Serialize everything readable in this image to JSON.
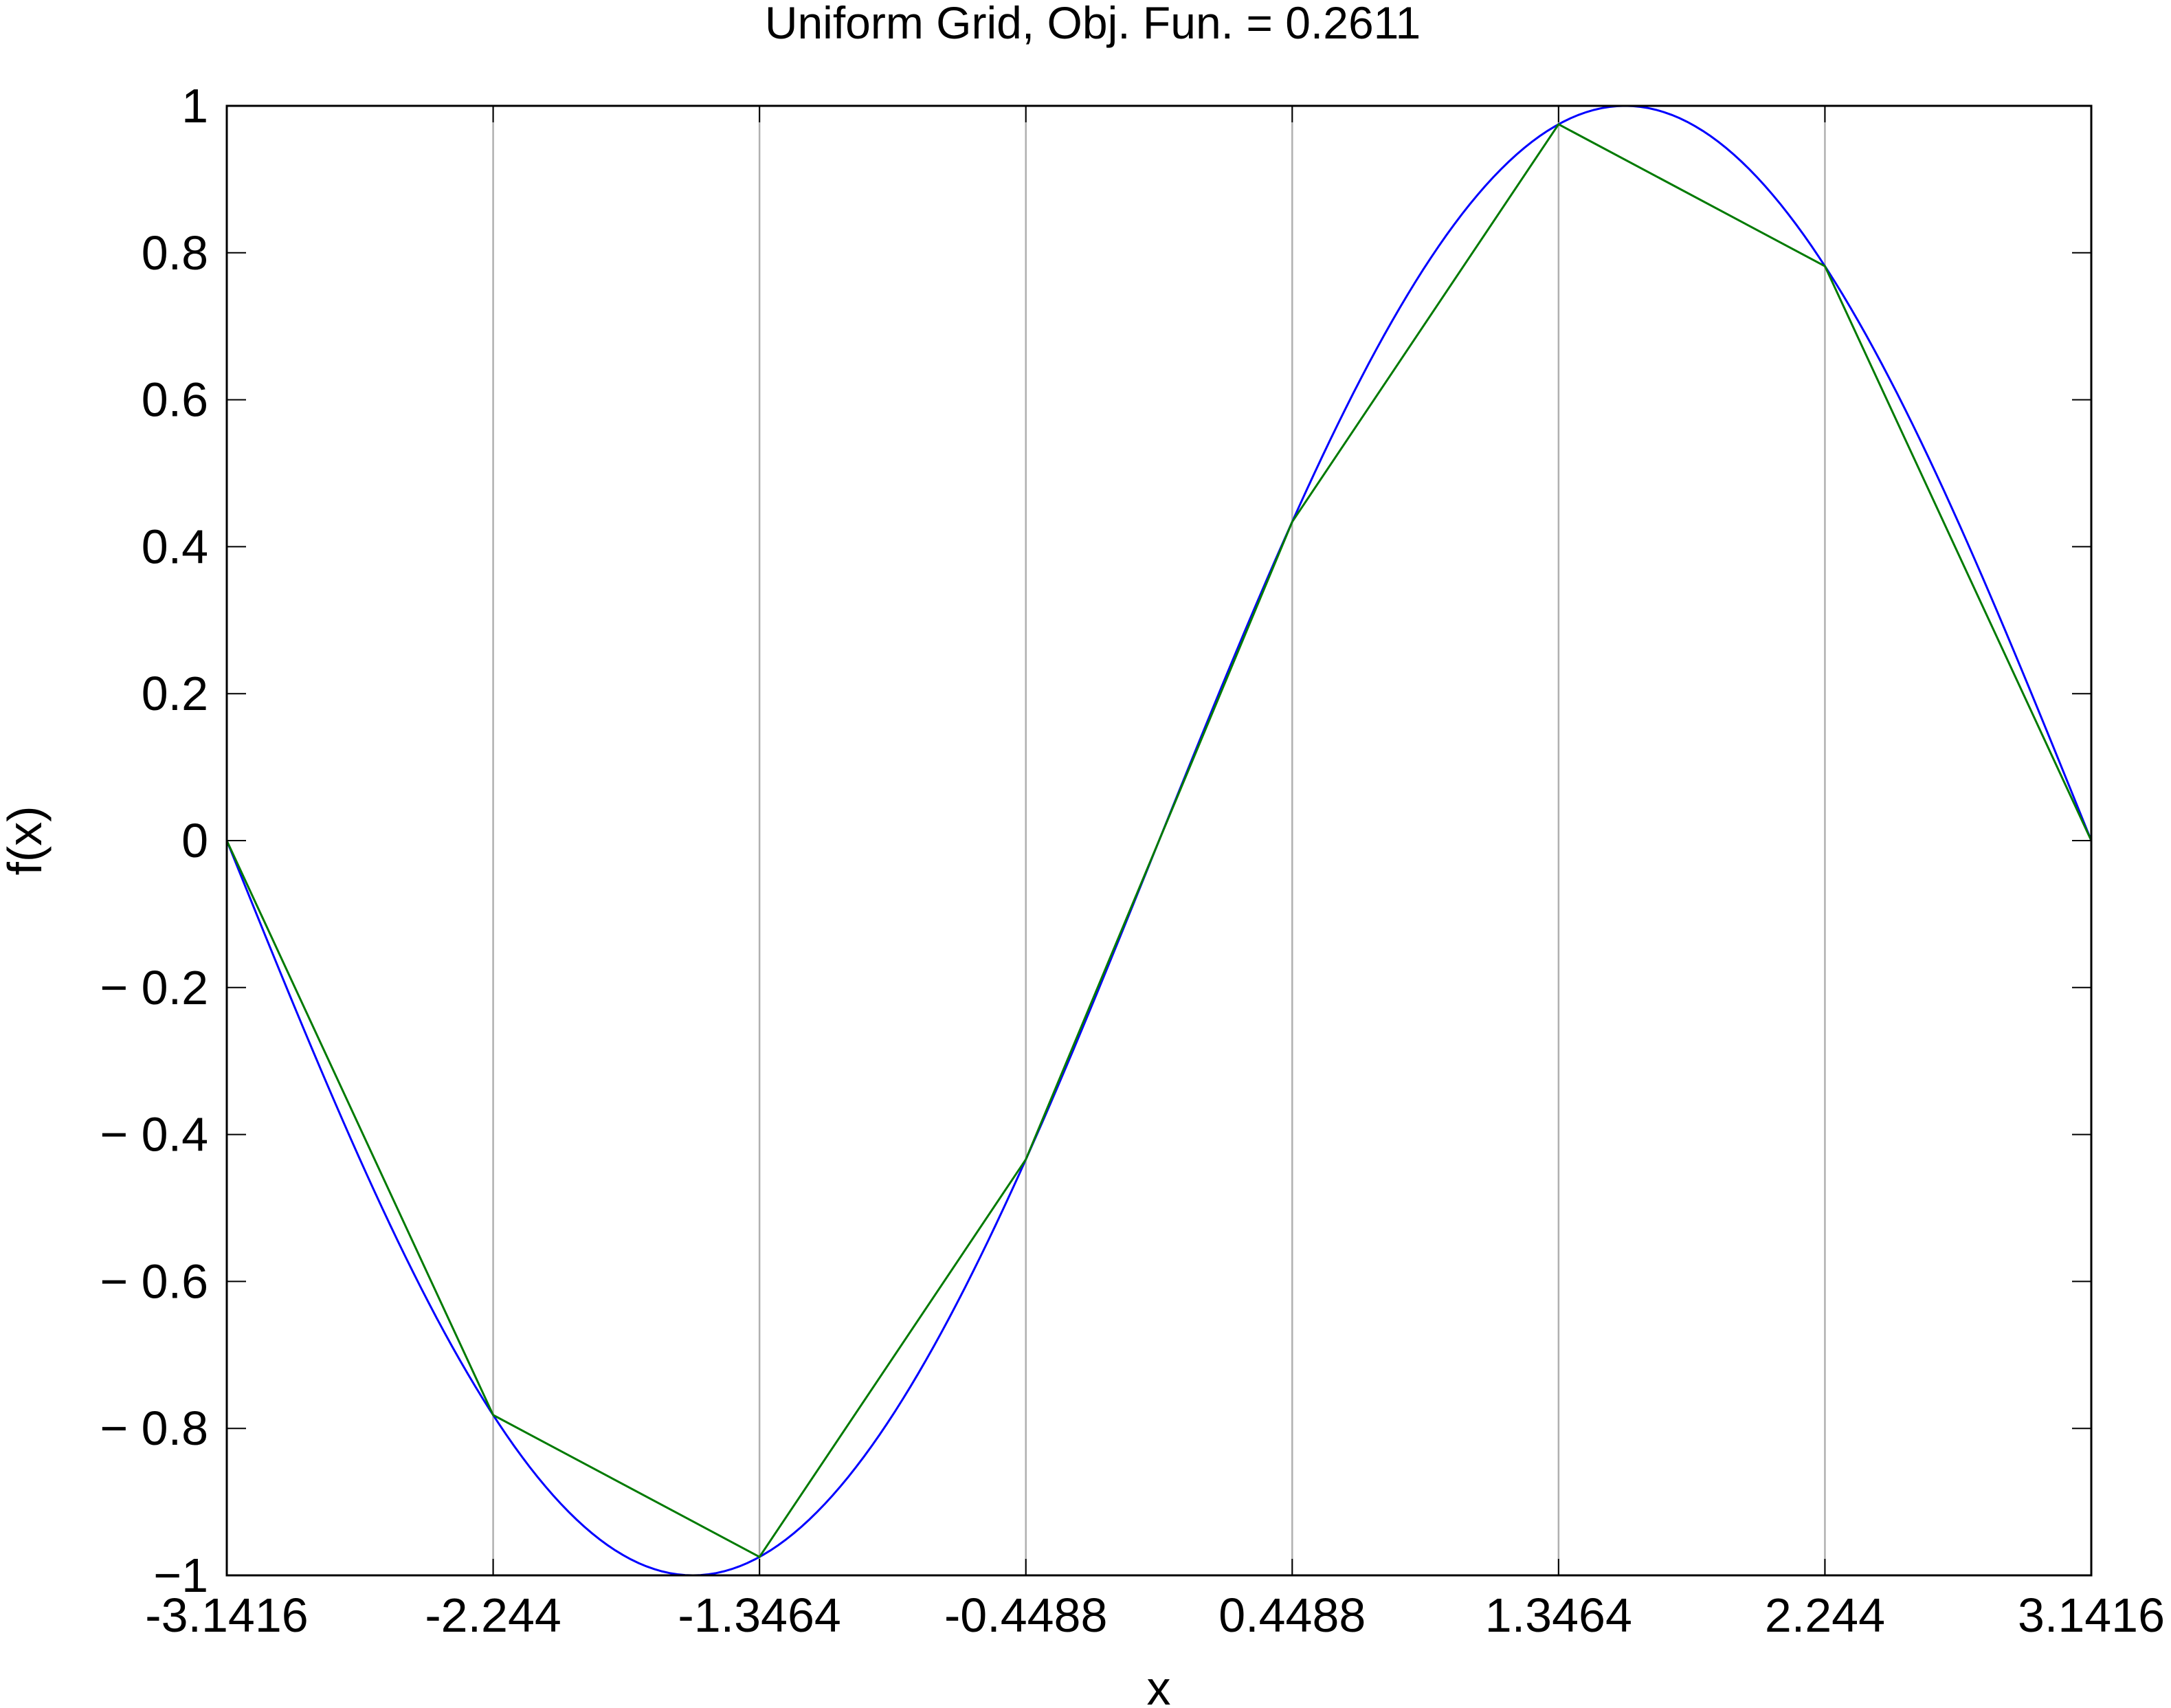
{
  "chart_data": {
    "type": "line",
    "title": "Uniform Grid, Obj.  Fun. =  0.2611",
    "xlabel": "x",
    "ylabel": "f(x)",
    "xlim": [
      -3.1416,
      3.1416
    ],
    "ylim": [
      -1,
      1
    ],
    "grid": {
      "x": true,
      "y": false
    },
    "x_ticks": [
      -3.1416,
      -2.244,
      -1.3464,
      -0.4488,
      0.4488,
      1.3464,
      2.244,
      3.1416
    ],
    "x_tick_labels": [
      "-3.1416",
      "-2.244",
      "-1.3464",
      "-0.4488",
      "0.4488",
      "1.3464",
      "2.244",
      "3.1416"
    ],
    "y_ticks": [
      1,
      0.8,
      0.6,
      0.4,
      0.2,
      0,
      -0.2,
      -0.4,
      -0.6,
      -0.8,
      -1
    ],
    "y_tick_labels": [
      "1",
      "0.8",
      "0.6",
      "0.4",
      "0.2",
      "0",
      "− 0.2",
      "− 0.4",
      "− 0.6",
      "− 0.8",
      "−1"
    ],
    "series": [
      {
        "function": "sin(x)",
        "color": "#0000ff",
        "samples": 240
      },
      {
        "color": "#007a00",
        "x": [
          -3.1416,
          -2.244,
          -1.3464,
          -0.4488,
          0.4488,
          1.3464,
          2.244,
          3.1416
        ],
        "y": [
          0,
          -0.7818,
          -0.9749,
          -0.4339,
          0.4339,
          0.9749,
          0.7818,
          0
        ]
      }
    ]
  }
}
